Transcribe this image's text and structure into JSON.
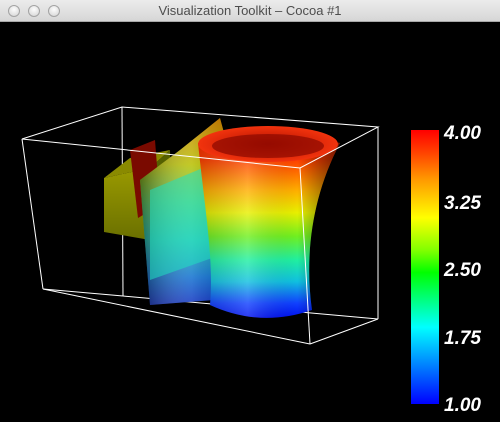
{
  "window": {
    "title": "Visualization Toolkit – Cocoa #1"
  },
  "titlebar_buttons": [
    "close",
    "minimize",
    "zoom"
  ],
  "scalar_bar": {
    "labels": [
      "4.00",
      "3.25",
      "2.50",
      "1.75",
      "1.00"
    ],
    "range": [
      1.0,
      4.0
    ],
    "colormap": "rainbow (blue → red)"
  },
  "scene": {
    "outline_color": "#ffffff",
    "background": "#000000"
  }
}
